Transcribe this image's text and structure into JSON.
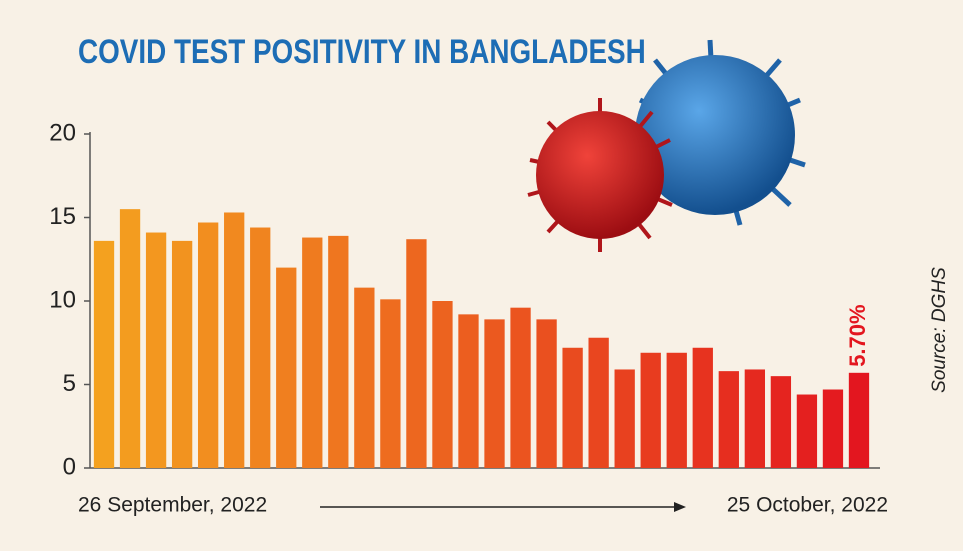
{
  "chart_data": {
    "type": "bar",
    "title": "COVID TEST POSITIVITY IN BANGLADESH",
    "categories": [
      null,
      null,
      null,
      null,
      null,
      null,
      null,
      null,
      null,
      null,
      null,
      null,
      null,
      null,
      null,
      null,
      null,
      null,
      null,
      null,
      null,
      null,
      null,
      null,
      null,
      null,
      null,
      null,
      null,
      null
    ],
    "values": [
      13.6,
      15.5,
      14.1,
      13.6,
      14.7,
      15.3,
      14.4,
      12.0,
      13.8,
      13.9,
      10.8,
      10.1,
      13.7,
      10.0,
      9.2,
      8.9,
      9.6,
      8.9,
      7.2,
      7.8,
      5.9,
      6.9,
      6.9,
      7.2,
      5.8,
      5.9,
      5.5,
      4.4,
      4.7,
      5.7
    ],
    "value_labels": [
      null,
      null,
      null,
      null,
      null,
      null,
      null,
      null,
      null,
      null,
      null,
      null,
      null,
      null,
      null,
      null,
      null,
      null,
      null,
      null,
      null,
      null,
      null,
      null,
      null,
      null,
      null,
      null,
      null,
      "5.70%"
    ],
    "color": [
      "#f4a11f",
      "#e3161f"
    ],
    "ylim": [
      0,
      20
    ],
    "yticks": [
      0,
      5,
      10,
      15,
      20
    ],
    "x_start_label": "26 September, 2022",
    "x_end_label": "25 October, 2022",
    "source": "Source: DGHS"
  }
}
